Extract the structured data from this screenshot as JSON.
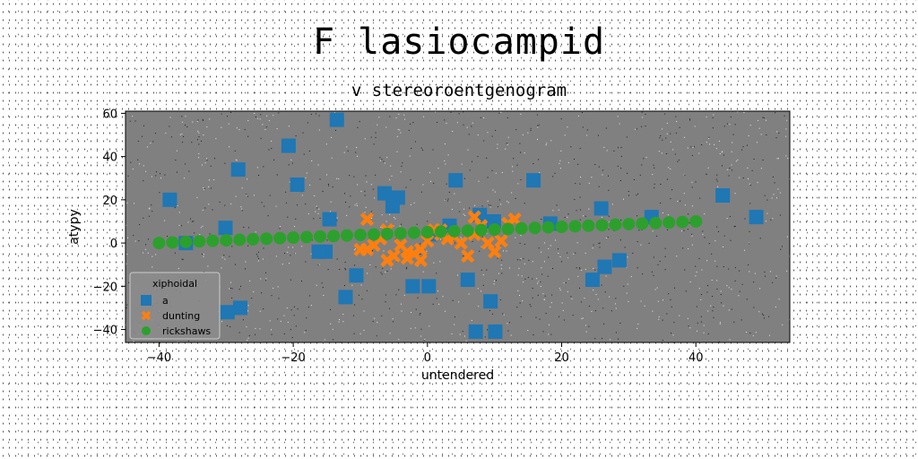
{
  "title": "F lasiocampid",
  "subtitle": "v stereoroentgenogram",
  "colors": {
    "plot_background": "#808080",
    "a": "#1f77b4",
    "dunting": "#ff7f0e",
    "rickshaws": "#2ca02c"
  },
  "chart_data": {
    "type": "scatter",
    "title": "F lasiocampid",
    "subtitle": "v stereoroentgenogram",
    "xlabel": "untendered",
    "ylabel": "atypy",
    "xlim": [
      -45,
      54
    ],
    "ylim": [
      -46,
      61
    ],
    "xticks": [
      -40,
      -20,
      0,
      20,
      40
    ],
    "yticks": [
      -40,
      -20,
      0,
      20,
      40,
      60
    ],
    "xtick_labels": [
      "−40",
      "−20",
      "0",
      "20",
      "40"
    ],
    "ytick_labels": [
      "−40",
      "−20",
      "0",
      "20",
      "40",
      "60"
    ],
    "grid": false,
    "legend": {
      "title": "xiphoidal",
      "placement": "lower-left"
    },
    "series": [
      {
        "name": "a",
        "marker": "square",
        "x": [
          -13.5,
          -20.7,
          -28.2,
          -19.4,
          -38.4,
          -30.1,
          -14.6,
          -15.2,
          -6.4,
          -4.4,
          -5.2,
          4.2,
          7.8,
          9.9,
          15.8,
          18.3,
          25.9,
          33.4,
          44.0,
          49.0,
          3.3,
          -10.6,
          -12.2,
          -2.2,
          0.2,
          6.0,
          9.4,
          7.2,
          10.1,
          24.6,
          26.4,
          28.6,
          -27.9,
          -29.8,
          -16.2,
          -36.0,
          0.5
        ],
        "y": [
          57,
          45,
          34,
          27,
          20,
          7,
          11,
          -4,
          23,
          21,
          17,
          29,
          13,
          10,
          29,
          9,
          16,
          12,
          22,
          12,
          8,
          -15,
          -25,
          -20,
          -20,
          -17,
          -27,
          -41,
          -41,
          -17,
          -11,
          -8,
          -30,
          -32,
          -4,
          0,
          4
        ]
      },
      {
        "name": "dunting",
        "marker": "x",
        "x": [
          -9,
          -6,
          -7,
          -8,
          -9,
          -10,
          -5,
          -4,
          -3,
          -2,
          -1,
          0,
          1,
          2,
          3,
          4,
          5,
          6,
          7,
          7,
          8,
          9,
          10,
          11,
          12,
          13,
          -6,
          -3,
          -1,
          2
        ],
        "y": [
          11,
          6,
          2,
          -1,
          -3,
          -3,
          -6,
          -1,
          -7,
          -5,
          -3,
          1,
          6,
          4,
          2,
          3,
          0,
          -6,
          12,
          4,
          8,
          0,
          -4,
          1,
          9,
          11,
          -8,
          -4,
          -8,
          6
        ]
      },
      {
        "name": "rickshaws",
        "marker": "circle",
        "x": [
          -40,
          -38,
          -36,
          -34,
          -32,
          -30,
          -28,
          -26,
          -24,
          -22,
          -20,
          -18,
          -16,
          -14,
          -12,
          -10,
          -8,
          -6,
          -4,
          -2,
          0,
          2,
          4,
          6,
          8,
          10,
          12,
          14,
          16,
          18,
          20,
          22,
          24,
          26,
          28,
          30,
          32,
          34,
          36,
          38,
          40
        ],
        "y": [
          0,
          0.25,
          0.5,
          0.75,
          1,
          1.25,
          1.5,
          1.75,
          2,
          2.25,
          2.5,
          2.75,
          3,
          3.25,
          3.5,
          3.75,
          4,
          4.25,
          4.5,
          4.75,
          5,
          5.25,
          5.5,
          5.75,
          6,
          6.25,
          6.5,
          6.75,
          7,
          7.25,
          7.5,
          7.75,
          8,
          8.25,
          8.5,
          8.75,
          9,
          9.25,
          9.5,
          9.75,
          10
        ]
      }
    ]
  }
}
